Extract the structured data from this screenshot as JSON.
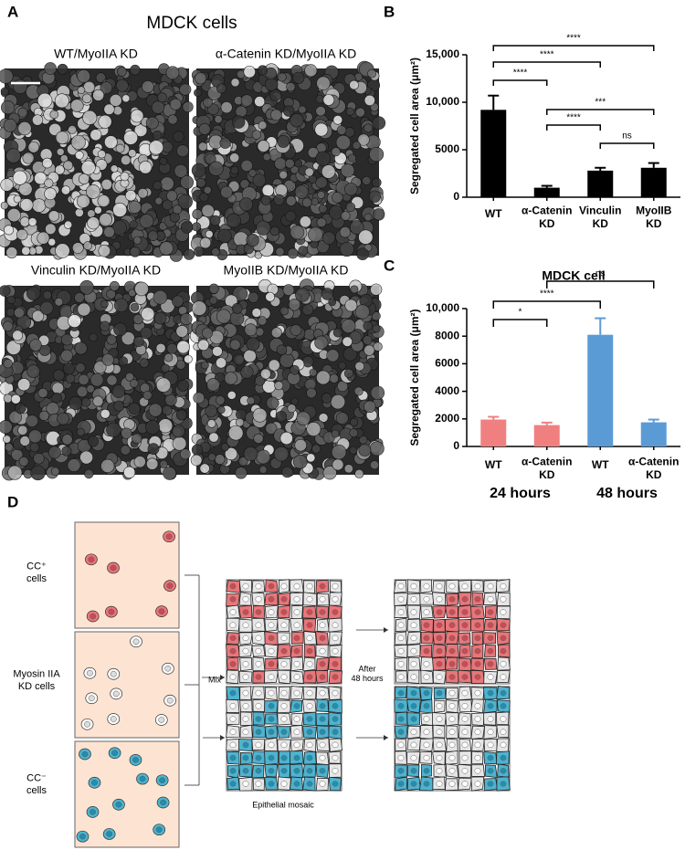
{
  "panel_labels": [
    "A",
    "B",
    "C",
    "D"
  ],
  "panel_a": {
    "title": "MDCK cells",
    "images": [
      "WT/MyoIIA KD",
      "α-Catenin KD/MyoIIA KD",
      "Vinculin KD/MyoIIA KD",
      "MyoIIB KD/MyoIIA KD"
    ]
  },
  "chart_data": [
    {
      "type": "bar",
      "ylabel": "Segregated cell area (μm²)",
      "categories": [
        "WT",
        "α-Catenin KD",
        "Vinculin KD",
        "MyoIIB KD"
      ],
      "values": [
        9200,
        1000,
        2800,
        3100
      ],
      "errors": [
        1500,
        200,
        300,
        500
      ],
      "color": "#000000",
      "ylim": [
        0,
        15000
      ],
      "yticks": [
        0,
        5000,
        {
          "value": 10000,
          "label": "10,000"
        },
        {
          "value": 15000,
          "label": "15,000"
        }
      ],
      "comparisons": [
        {
          "pair": [
            0,
            3
          ],
          "label": "****"
        },
        {
          "pair": [
            0,
            2
          ],
          "label": "****"
        },
        {
          "pair": [
            0,
            1
          ],
          "label": "****"
        },
        {
          "pair": [
            1,
            3
          ],
          "label": "***"
        },
        {
          "pair": [
            1,
            2
          ],
          "label": "****"
        },
        {
          "pair": [
            2,
            3
          ],
          "label": "ns"
        }
      ]
    },
    {
      "type": "bar",
      "title": "MDCK cell",
      "ylabel": "Segregated cell area (μm²)",
      "categories": [
        "WT",
        "α-Catenin KD",
        "WT",
        "α-Catenin KD"
      ],
      "values": [
        1950,
        1550,
        8100,
        1750
      ],
      "errors": [
        200,
        180,
        1200,
        200
      ],
      "colors": [
        "#f08080",
        "#f08080",
        "#5b9bd5",
        "#5b9bd5"
      ],
      "groups": [
        {
          "label": "24 hours",
          "color": "#f08080",
          "members": [
            0,
            1
          ]
        },
        {
          "label": "48 hours",
          "color": "#5b9bd5",
          "members": [
            2,
            3
          ]
        }
      ],
      "ylim": [
        0,
        10000
      ],
      "yticks": [
        0,
        2000,
        4000,
        6000,
        8000,
        {
          "value": 10000,
          "label": "10,000"
        }
      ],
      "comparisons": [
        {
          "pair": [
            1,
            3
          ],
          "label": "ns"
        },
        {
          "pair": [
            0,
            2
          ],
          "label": "****"
        },
        {
          "pair": [
            0,
            1
          ],
          "label": "*"
        }
      ]
    }
  ],
  "panel_d": {
    "cell_labels": [
      "CC⁺ cells",
      "Myosin IIA KD cells",
      "CC⁻ cells"
    ],
    "mix": "Mix",
    "after": "After 48 hours",
    "mosaic": "Epithelial mosaic"
  }
}
